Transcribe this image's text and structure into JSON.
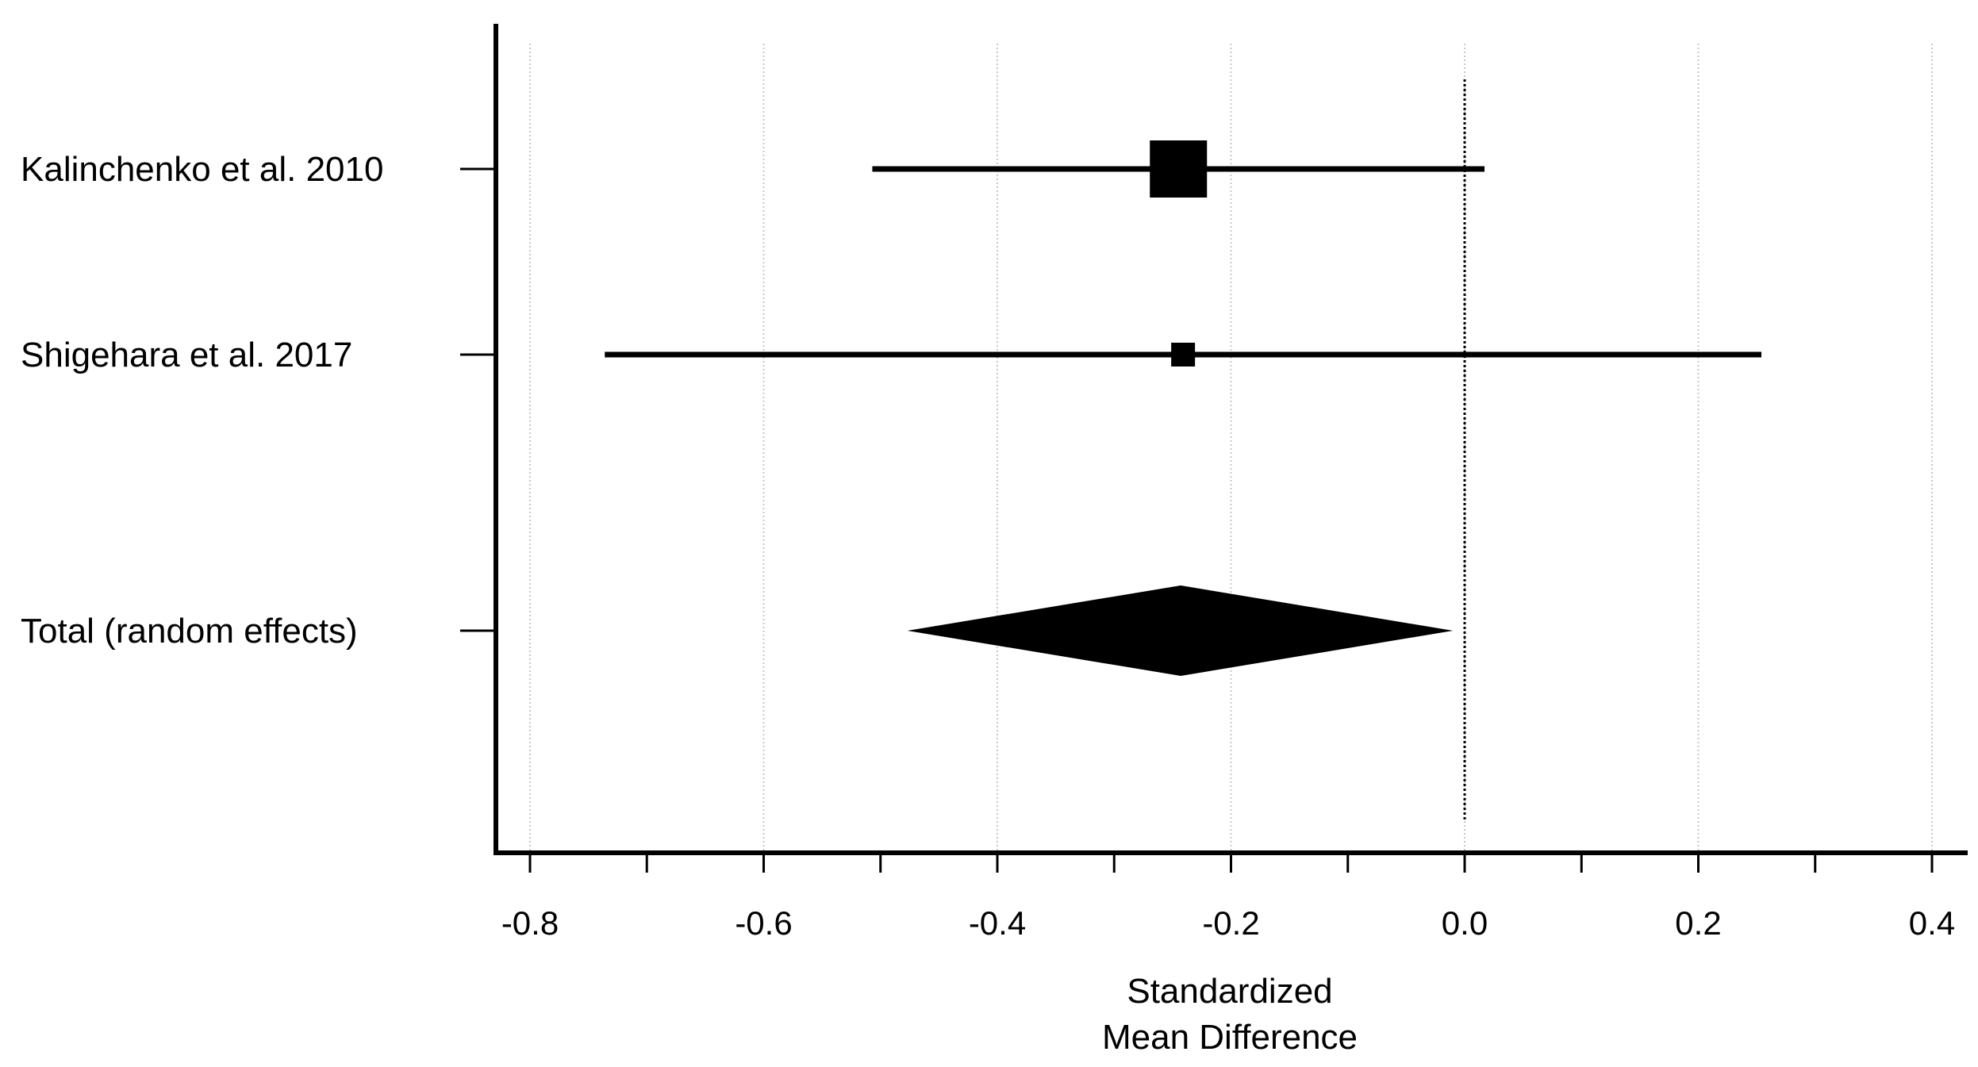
{
  "chart_data": {
    "type": "forest",
    "xlabel_lines": [
      "Standardized",
      "Mean Difference"
    ],
    "xlim": [
      -0.83,
      0.43
    ],
    "x_ticks": [
      -0.8,
      -0.6,
      -0.4,
      -0.2,
      0.0,
      0.2,
      0.4
    ],
    "x_tick_labels": [
      "-0.8",
      "-0.6",
      "-0.4",
      "-0.2",
      "0.0",
      "0.2",
      "0.4"
    ],
    "minor_tick_step": 0.1,
    "grid": true,
    "reference_line": 0.0,
    "studies": [
      {
        "label": "Kalinchenko et al. 2010",
        "estimate": -0.245,
        "ci_low": -0.507,
        "ci_high": 0.017,
        "weight_marker": "large"
      },
      {
        "label": "Shigehara et al. 2017",
        "estimate": -0.241,
        "ci_low": -0.736,
        "ci_high": 0.254,
        "weight_marker": "small"
      }
    ],
    "total": {
      "label": "Total (random effects)",
      "estimate": -0.243,
      "ci_low": -0.477,
      "ci_high": -0.01
    },
    "colors": {
      "marker": "#000000",
      "axis": "#000000",
      "grid": "#c8c8c8"
    }
  }
}
